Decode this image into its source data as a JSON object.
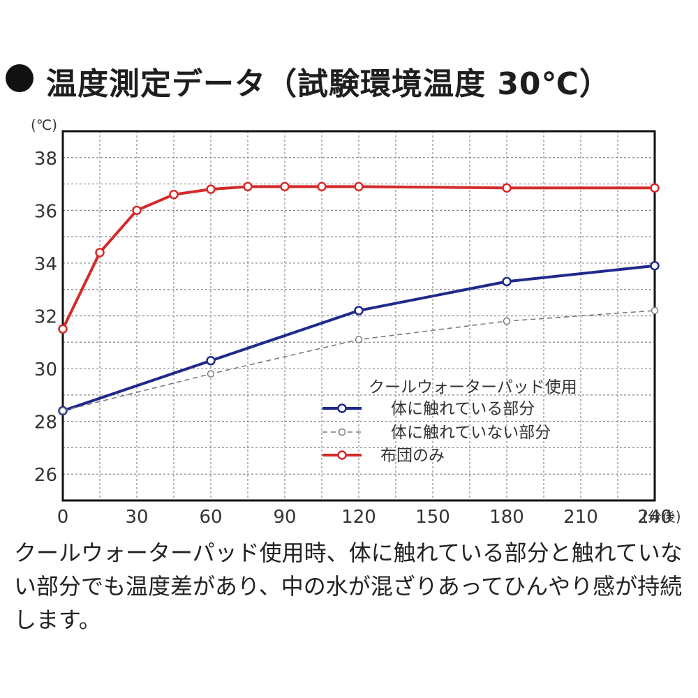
{
  "title": "温度測定データ（試験環境温度 30℃）",
  "description": "クールウォーターパッド使用時、体に触れている部分と触れていない部分でも温度差があり、中の水が混ざりあってひんやり感が持続します。",
  "chart_data": {
    "type": "line",
    "ylabel": "(℃)",
    "xlabel": "(分後)",
    "xlim": [
      0,
      240
    ],
    "ylim": [
      25,
      39
    ],
    "x_ticks": [
      0,
      30,
      60,
      90,
      120,
      150,
      180,
      210,
      240
    ],
    "x_tick_labels": [
      "0",
      "30",
      "60",
      "90",
      "120",
      "150",
      "180",
      "210",
      "240"
    ],
    "y_ticks": [
      26,
      28,
      30,
      32,
      34,
      36,
      38
    ],
    "y_tick_labels": [
      "26",
      "28",
      "30",
      "32",
      "34",
      "36",
      "38"
    ],
    "grid": true,
    "legend_title": "クールウォーターパッド使用",
    "legend_position": "lower-right",
    "series": [
      {
        "name": "体に触れている部分",
        "color": "#1f2a8c",
        "style": "solid",
        "x": [
          0,
          60,
          120,
          180,
          240
        ],
        "y": [
          28.4,
          30.3,
          32.2,
          33.3,
          33.9
        ]
      },
      {
        "name": "体に触れていない部分",
        "color": "#7a7a7a",
        "style": "dashed",
        "x": [
          0,
          60,
          120,
          180,
          240
        ],
        "y": [
          28.4,
          29.8,
          31.1,
          31.8,
          32.2
        ]
      },
      {
        "name": "布団のみ",
        "color": "#d42a2a",
        "style": "solid",
        "x": [
          0,
          15,
          30,
          45,
          60,
          75,
          90,
          105,
          120,
          180,
          240
        ],
        "y": [
          31.5,
          34.4,
          36.0,
          36.6,
          36.8,
          36.9,
          36.9,
          36.9,
          36.9,
          36.85,
          36.85
        ]
      }
    ]
  }
}
